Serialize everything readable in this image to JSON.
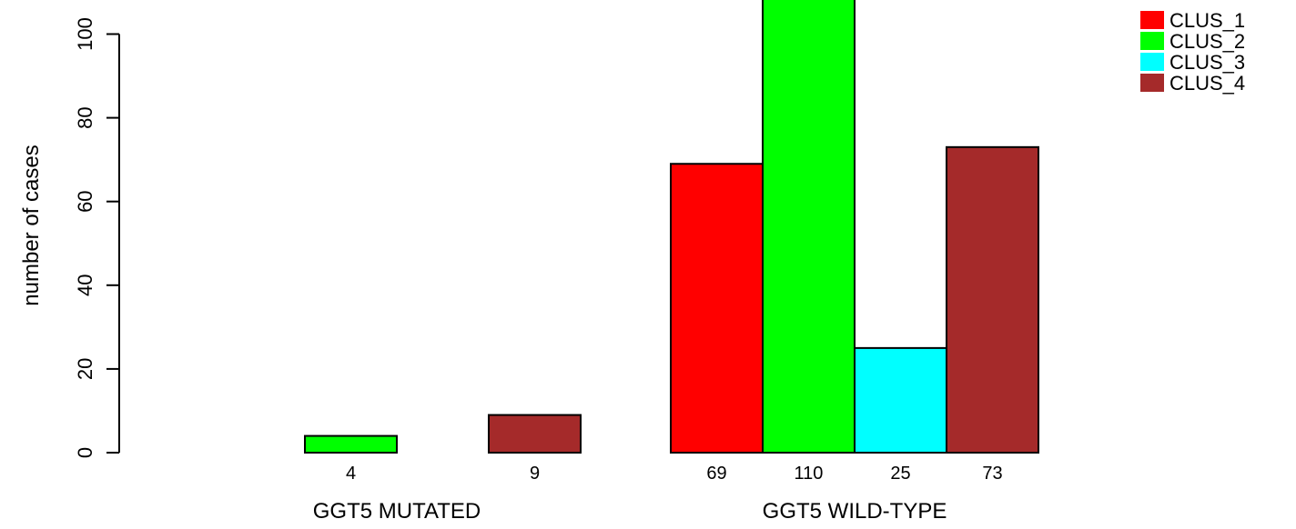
{
  "chart_data": {
    "type": "bar",
    "ylabel": "number of cases",
    "ylim": [
      0,
      110
    ],
    "yticks": [
      0,
      20,
      40,
      60,
      80,
      100
    ],
    "groups": [
      {
        "label": "GGT5 MUTATED",
        "values": [
          0,
          4,
          0,
          9
        ],
        "labels": [
          "",
          "4",
          "",
          "9"
        ]
      },
      {
        "label": "GGT5 WILD-TYPE",
        "values": [
          69,
          110,
          25,
          73
        ],
        "labels": [
          "69",
          "110",
          "25",
          "73"
        ]
      }
    ],
    "series": [
      {
        "name": "CLUS_1",
        "color": "#ff0000"
      },
      {
        "name": "CLUS_2",
        "color": "#00ff00"
      },
      {
        "name": "CLUS_3",
        "color": "#00ffff"
      },
      {
        "name": "CLUS_4",
        "color": "#a52a2a"
      }
    ],
    "legend": "top-right"
  }
}
